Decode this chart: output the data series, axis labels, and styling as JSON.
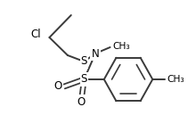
{
  "background_color": "#ffffff",
  "line_color": "#3a3a3a",
  "line_width": 1.4,
  "font_size": 8.5,
  "figsize": [
    2.11,
    1.57
  ],
  "dpi": 100,
  "xlim": [
    0,
    211
  ],
  "ylim": [
    0,
    157
  ]
}
